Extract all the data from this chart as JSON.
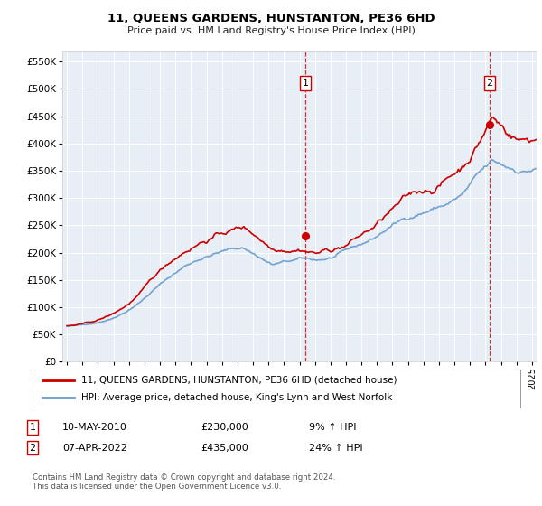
{
  "title": "11, QUEENS GARDENS, HUNSTANTON, PE36 6HD",
  "subtitle": "Price paid vs. HM Land Registry's House Price Index (HPI)",
  "legend_line1": "11, QUEENS GARDENS, HUNSTANTON, PE36 6HD (detached house)",
  "legend_line2": "HPI: Average price, detached house, King's Lynn and West Norfolk",
  "sale1_date": "10-MAY-2010",
  "sale1_price": "£230,000",
  "sale1_hpi": "9% ↑ HPI",
  "sale1_year": 2010.37,
  "sale1_value": 230000,
  "sale2_date": "07-APR-2022",
  "sale2_price": "£435,000",
  "sale2_hpi": "24% ↑ HPI",
  "sale2_year": 2022.27,
  "sale2_value": 435000,
  "footer": "Contains HM Land Registry data © Crown copyright and database right 2024.\nThis data is licensed under the Open Government Licence v3.0.",
  "red_color": "#cc0000",
  "blue_color": "#6699cc",
  "bg_color": "#e8eef5",
  "grid_color": "#ffffff",
  "ylim_max": 570000,
  "xlim_start": 1994.7,
  "xlim_end": 2025.3
}
